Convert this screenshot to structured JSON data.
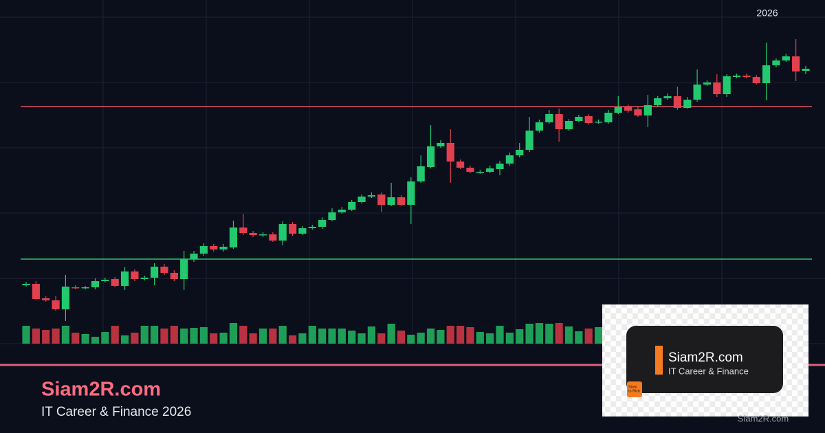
{
  "chart_data": {
    "type": "candlestick",
    "period_label": "2026",
    "ylim": [
      0,
      475
    ],
    "volume_ylim": [
      0,
      100
    ],
    "up_color": "#22c96e",
    "down_color": "#e2404f",
    "volume_up_color": "#1f9e57",
    "volume_down_color": "#b8323f",
    "grid": true,
    "levels": [
      {
        "value": 345,
        "color": "#e2505f"
      },
      {
        "value": 123,
        "color": "#2bc46d"
      }
    ],
    "open": [
      85,
      87,
      66,
      63,
      50,
      82,
      81,
      82,
      91,
      94,
      84,
      105,
      94,
      96,
      112,
      103,
      94,
      123,
      131,
      142,
      137,
      140,
      169,
      161,
      158,
      159,
      150,
      174,
      160,
      168,
      170,
      180,
      191,
      195,
      206,
      214,
      217,
      202,
      213,
      202,
      236,
      257,
      287,
      292,
      265,
      256,
      249,
      250,
      254,
      262,
      274,
      282,
      310,
      322,
      334,
      312,
      324,
      331,
      322,
      322,
      336,
      345,
      341,
      332,
      347,
      357,
      360,
      343,
      355,
      377,
      380,
      363,
      388,
      390,
      388,
      379,
      405,
      412,
      418,
      397
    ],
    "high": [
      90,
      91,
      69,
      69,
      100,
      85,
      84,
      95,
      96,
      97,
      111,
      108,
      99,
      117,
      116,
      107,
      135,
      135,
      146,
      145,
      145,
      179,
      189,
      164,
      162,
      162,
      178,
      177,
      171,
      173,
      184,
      197,
      199,
      209,
      217,
      220,
      220,
      234,
      216,
      242,
      274,
      318,
      296,
      312,
      268,
      259,
      253,
      259,
      266,
      278,
      292,
      330,
      326,
      340,
      342,
      327,
      333,
      334,
      326,
      340,
      360,
      348,
      345,
      362,
      360,
      364,
      374,
      359,
      399,
      383,
      392,
      392,
      393,
      393,
      391,
      438,
      415,
      422,
      443,
      404
    ],
    "low": [
      83,
      63,
      61,
      48,
      33,
      79,
      79,
      79,
      89,
      82,
      78,
      91,
      92,
      85,
      100,
      91,
      78,
      119,
      128,
      134,
      134,
      138,
      158,
      155,
      155,
      148,
      143,
      157,
      158,
      166,
      167,
      178,
      189,
      193,
      204,
      212,
      192,
      200,
      200,
      174,
      234,
      255,
      285,
      234,
      254,
      248,
      247,
      248,
      245,
      259,
      271,
      279,
      307,
      320,
      294,
      310,
      322,
      319,
      320,
      320,
      334,
      336,
      330,
      315,
      344,
      355,
      340,
      342,
      352,
      375,
      359,
      359,
      386,
      386,
      377,
      354,
      402,
      410,
      382,
      392
    ],
    "close": [
      87,
      65,
      63,
      50,
      83,
      81,
      82,
      91,
      93,
      84,
      105,
      94,
      96,
      112,
      103,
      94,
      123,
      131,
      142,
      137,
      141,
      169,
      161,
      158,
      159,
      150,
      174,
      160,
      168,
      170,
      180,
      191,
      195,
      206,
      214,
      216,
      202,
      213,
      202,
      236,
      258,
      287,
      292,
      265,
      256,
      250,
      250,
      255,
      262,
      274,
      282,
      310,
      322,
      334,
      312,
      324,
      330,
      321,
      323,
      336,
      344,
      339,
      332,
      347,
      357,
      360,
      343,
      355,
      377,
      380,
      363,
      389,
      390,
      388,
      379,
      405,
      412,
      418,
      396,
      400
    ],
    "volume": [
      26,
      22,
      20,
      22,
      26,
      16,
      14,
      10,
      17,
      26,
      12,
      16,
      26,
      26,
      22,
      26,
      22,
      23,
      24,
      15,
      16,
      30,
      26,
      15,
      22,
      22,
      26,
      12,
      15,
      26,
      22,
      22,
      22,
      19,
      15,
      25,
      15,
      29,
      19,
      13,
      16,
      22,
      20,
      26,
      26,
      24,
      17,
      15,
      26,
      16,
      21,
      29,
      30,
      29,
      30,
      25,
      18,
      22,
      24,
      null,
      null,
      null,
      null,
      null,
      null,
      null,
      null,
      null,
      null,
      null,
      null,
      null,
      null,
      null,
      null,
      null,
      null,
      null,
      null,
      null
    ]
  },
  "branding": {
    "title": "Siam2R.com",
    "subtitle": "IT Career & Finance 2026"
  },
  "overlay": {
    "title": "Siam2R.com",
    "subtitle": "IT Career & Finance",
    "badge_lines": [
      "Siam",
      "to Rich"
    ],
    "watermark": "Siam2R.com"
  }
}
